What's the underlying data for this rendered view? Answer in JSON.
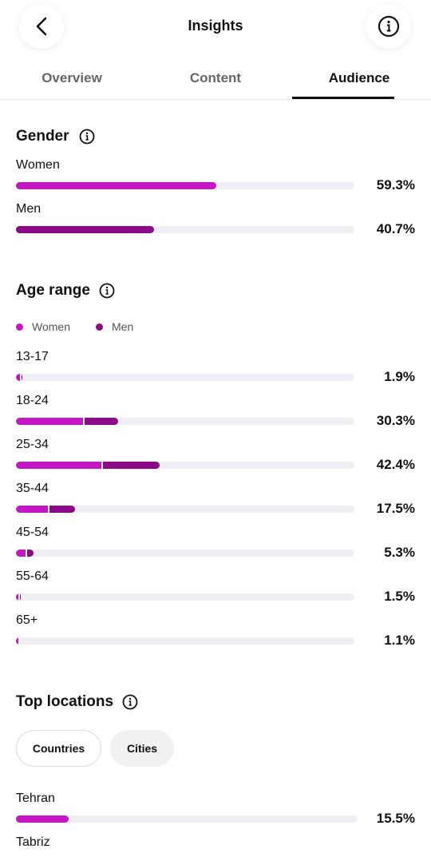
{
  "header": {
    "title": "Insights"
  },
  "tabs": {
    "items": [
      "Overview",
      "Content",
      "Audience"
    ],
    "active": 2
  },
  "gender": {
    "heading": "Gender",
    "xlim": [
      0,
      100
    ],
    "rows": [
      {
        "label": "Women",
        "value": 59.3,
        "value_label": "59.3%",
        "color": "#c516c3"
      },
      {
        "label": "Men",
        "value": 40.7,
        "value_label": "40.7%",
        "color": "#8b0a88"
      }
    ]
  },
  "age_range": {
    "heading": "Age range",
    "xlim": [
      0,
      100
    ],
    "legend": [
      {
        "name": "Women",
        "color": "#c516c3"
      },
      {
        "name": "Men",
        "color": "#8b0a88"
      }
    ],
    "rows": [
      {
        "label": "13-17",
        "values": [
          1.1,
          0.8
        ],
        "total": 1.9,
        "total_label": "1.9%"
      },
      {
        "label": "18-24",
        "values": [
          19.9,
          10.4
        ],
        "total": 30.3,
        "total_label": "30.3%"
      },
      {
        "label": "25-34",
        "values": [
          25.2,
          17.2
        ],
        "total": 42.4,
        "total_label": "42.4%"
      },
      {
        "label": "35-44",
        "values": [
          9.5,
          8.0
        ],
        "total": 17.5,
        "total_label": "17.5%"
      },
      {
        "label": "45-54",
        "values": [
          2.8,
          2.5
        ],
        "total": 5.3,
        "total_label": "5.3%"
      },
      {
        "label": "55-64",
        "values": [
          0.8,
          0.7
        ],
        "total": 1.5,
        "total_label": "1.5%"
      },
      {
        "label": "65+",
        "values": [
          0.6,
          0.5
        ],
        "total": 1.1,
        "total_label": "1.1%"
      }
    ]
  },
  "top_locations": {
    "heading": "Top locations",
    "filters": [
      "Countries",
      "Cities"
    ],
    "active_filter": 0,
    "xlim": [
      0,
      100
    ],
    "color": "#c516c3",
    "rows": [
      {
        "label": "Tehran",
        "value": 15.5,
        "value_label": "15.5%"
      },
      {
        "label": "Tabriz"
      }
    ]
  }
}
